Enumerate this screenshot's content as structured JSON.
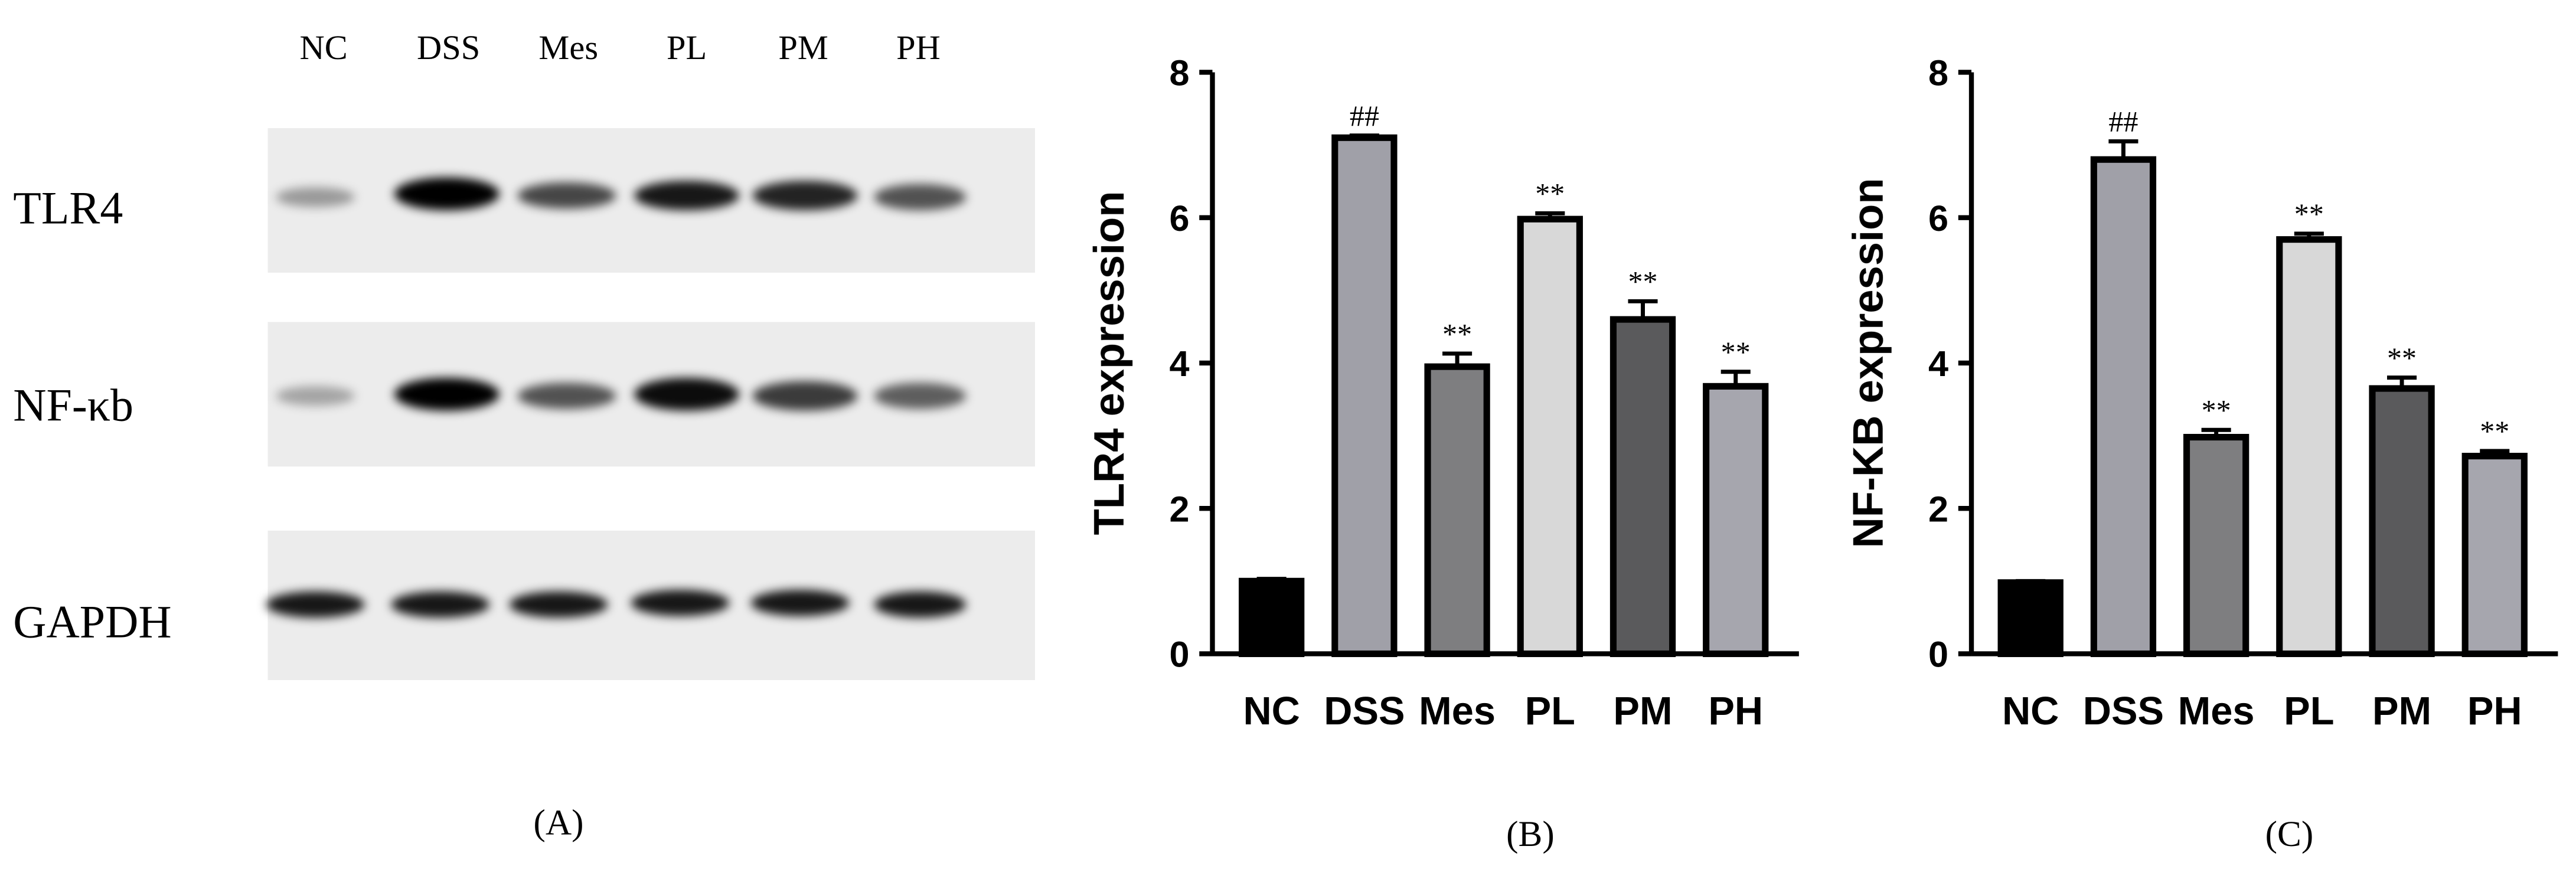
{
  "blot": {
    "lanes": [
      "NC",
      "DSS",
      "Mes",
      "PL",
      "PM",
      "PH"
    ],
    "proteins": [
      "TLR4",
      "NF-κb",
      "GAPDH"
    ],
    "panel_label": "(A)"
  },
  "chart_data": [
    {
      "type": "bar",
      "ylabel": "TLR4 expression",
      "panel_label": "(B)",
      "categories": [
        "NC",
        "DSS",
        "Mes",
        "PL",
        "PM",
        "PH"
      ],
      "values": [
        1.0,
        7.1,
        3.95,
        5.98,
        4.6,
        3.68
      ],
      "errors": [
        0.03,
        0.03,
        0.18,
        0.08,
        0.25,
        0.2
      ],
      "annotations": [
        null,
        "##",
        "**",
        "**",
        "**",
        "**"
      ],
      "colors": [
        "#000000",
        "#a0a0a8",
        "#7e7e80",
        "#d8d8d8",
        "#5a5a5c",
        "#a6a6ae"
      ],
      "ylim": [
        0,
        8
      ],
      "yticks": [
        0,
        2,
        4,
        6,
        8
      ]
    },
    {
      "type": "bar",
      "ylabel": "NF-KB expression",
      "panel_label": "(C)",
      "categories": [
        "NC",
        "DSS",
        "Mes",
        "PL",
        "PM",
        "PH"
      ],
      "values": [
        0.98,
        6.8,
        2.98,
        5.7,
        3.65,
        2.72
      ],
      "errors": [
        0.02,
        0.25,
        0.1,
        0.08,
        0.15,
        0.07
      ],
      "annotations": [
        null,
        "##",
        "**",
        "**",
        "**",
        "**"
      ],
      "colors": [
        "#000000",
        "#a0a0a8",
        "#7e7e80",
        "#d8d8d8",
        "#5a5a5c",
        "#a6a6ae"
      ],
      "ylim": [
        0,
        8
      ],
      "yticks": [
        0,
        2,
        4,
        6,
        8
      ]
    }
  ]
}
